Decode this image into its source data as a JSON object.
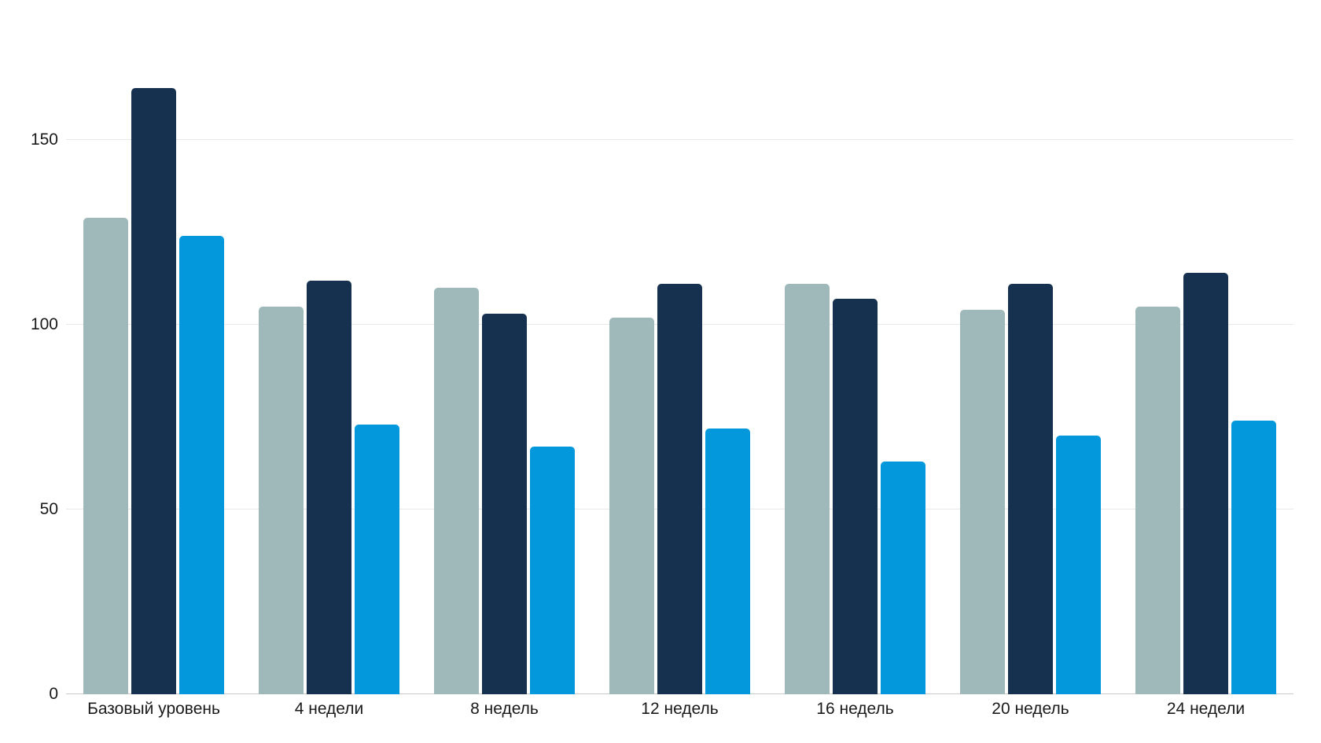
{
  "chart_data": {
    "type": "bar",
    "title": "",
    "xlabel": "",
    "ylabel": "",
    "categories": [
      "Базовый уровень",
      "4 недели",
      "8 недель",
      "12 недель",
      "16 недель",
      "20 недель",
      "24 недели"
    ],
    "series": [
      {
        "name": "grayish-teal-series",
        "color": "#9fb8ba",
        "values": [
          129,
          105,
          110,
          102,
          111,
          104,
          105
        ]
      },
      {
        "name": "dark-navy-series",
        "color": "#16304f",
        "values": [
          164,
          112,
          103,
          111,
          107,
          111,
          114
        ]
      },
      {
        "name": "bright-blue-series",
        "color": "#0398dc",
        "values": [
          124,
          73,
          67,
          72,
          63,
          70,
          74
        ]
      }
    ],
    "ylim": [
      0,
      175
    ],
    "yticks": [
      0,
      50,
      100,
      150
    ],
    "grid": true,
    "legend_position": "none",
    "colors": {
      "gridline": "#e9e9e9",
      "axis_line": "#c9c9c9",
      "tick_text": "#1a1a1a"
    }
  }
}
